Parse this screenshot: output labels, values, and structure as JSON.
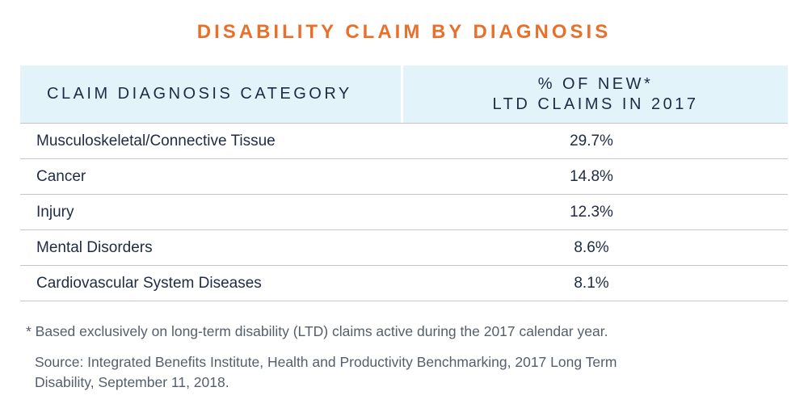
{
  "title": "DISABILITY CLAIM BY DIAGNOSIS",
  "table": {
    "headers": {
      "category": "CLAIM DIAGNOSIS CATEGORY",
      "percent_line1": "% OF NEW*",
      "percent_line2": "LTD CLAIMS IN 2017"
    },
    "rows": [
      {
        "category": "Musculoskeletal/Connective Tissue",
        "percent": "29.7%"
      },
      {
        "category": "Cancer",
        "percent": "14.8%"
      },
      {
        "category": "Injury",
        "percent": "12.3%"
      },
      {
        "category": "Mental Disorders",
        "percent": "8.6%"
      },
      {
        "category": "Cardiovascular System Diseases",
        "percent": "8.1%"
      }
    ]
  },
  "footnote": "* Based exclusively on long-term disability (LTD) claims active during the 2017 calendar year.",
  "source_line1": "Source: Integrated Benefits Institute, Health and Productivity Benchmarking, 2017 Long Term",
  "source_line2": "Disability, September 11, 2018.",
  "colors": {
    "title": "#e8702a",
    "header_bg": "#e3f3fa",
    "text": "#1f2a44",
    "muted": "#555e6b",
    "rule": "#c7c7c7"
  }
}
